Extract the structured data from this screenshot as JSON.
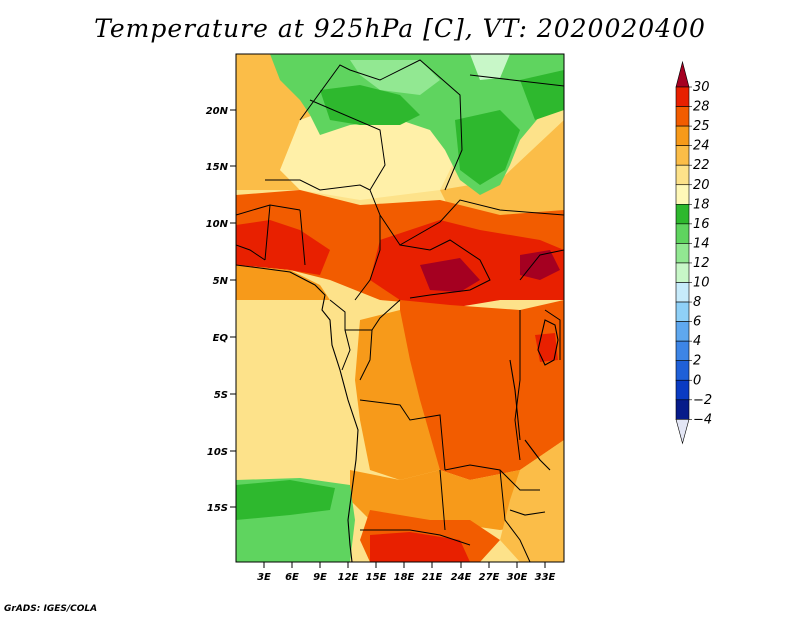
{
  "title": "Temperature at 925hPa [C], VT: 2020020400",
  "credit": "GrADS: IGES/COLA",
  "map": {
    "lat_ticks": [
      "20N",
      "15N",
      "10N",
      "5N",
      "EQ",
      "5S",
      "10S",
      "15S"
    ],
    "lon_ticks": [
      "3E",
      "6E",
      "9E",
      "12E",
      "15E",
      "18E",
      "21E",
      "24E",
      "27E",
      "30E",
      "33E"
    ]
  },
  "colorbar": {
    "labels": [
      "30",
      "28",
      "25",
      "24",
      "22",
      "20",
      "18",
      "16",
      "14",
      "12",
      "10",
      "8",
      "6",
      "4",
      "2",
      "0",
      "−2",
      "−4"
    ],
    "colors": [
      "#a50021",
      "#e82000",
      "#f25c00",
      "#f79a1a",
      "#fbbd48",
      "#fde28a",
      "#fff8b8",
      "#2eb82e",
      "#5fd45f",
      "#92e892",
      "#c8f7c8",
      "#c7ebfb",
      "#8fd0f7",
      "#5fa8ef",
      "#3d85e6",
      "#1f60d8",
      "#0a3bc2",
      "#061b8a",
      "#e3e6f5"
    ]
  }
}
